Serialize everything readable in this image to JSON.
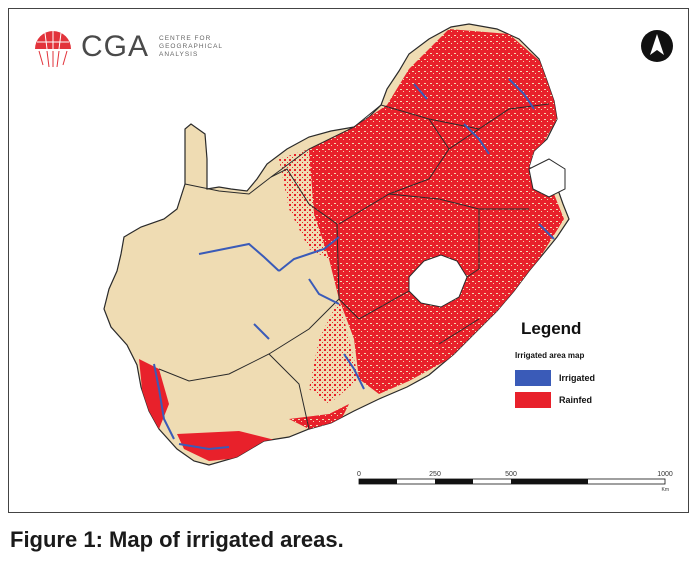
{
  "logo": {
    "name": "CGA",
    "subtitle": "CENTRE FOR GEOGRAPHICAL ANALYSIS"
  },
  "legend": {
    "title": "Legend",
    "subtitle": "Irrigated area map",
    "items": [
      {
        "label": "Irrigated",
        "color": "#3a5bb8"
      },
      {
        "label": "Rainfed",
        "color": "#e8212b"
      }
    ]
  },
  "scale_bar": {
    "ticks": [
      "0",
      "250",
      "500",
      "1000"
    ],
    "unit": "Km"
  },
  "colors": {
    "land": "#efdcb3",
    "border": "#2a2a2a"
  },
  "caption": "Figure 1: Map of irrigated areas."
}
